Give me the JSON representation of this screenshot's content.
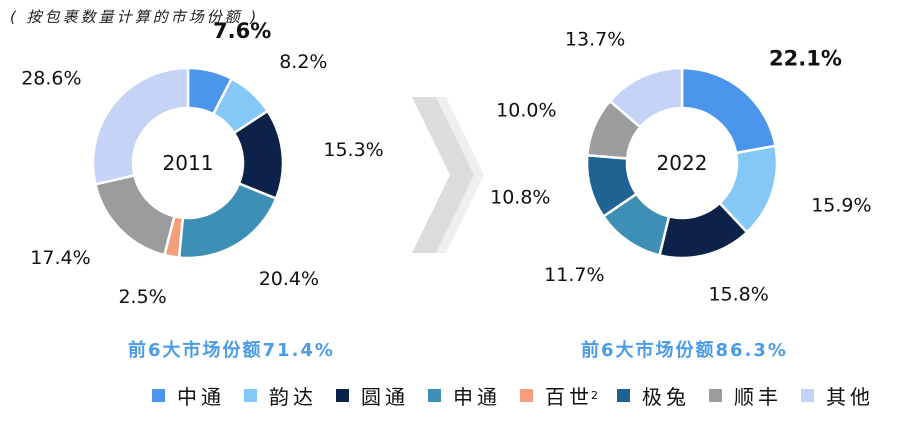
{
  "subtitle": "( 按包裹数量计算的市场份额 )",
  "colors": {
    "zto": "#4c95ec",
    "yunda": "#84c8f8",
    "yto": "#0d2248",
    "sto": "#3e8fb5",
    "best": "#f59e7e",
    "jitu": "#1e6391",
    "sf": "#9b9c9e",
    "other": "#c5d4f6"
  },
  "legend": [
    {
      "key": "zto",
      "label": "中通",
      "color": "#4c95ec"
    },
    {
      "key": "yunda",
      "label": "韵达",
      "color": "#84c8f8"
    },
    {
      "key": "yto",
      "label": "圆通",
      "color": "#0d2248"
    },
    {
      "key": "sto",
      "label": "申通",
      "color": "#3e8fb5"
    },
    {
      "key": "best",
      "label": "百世",
      "sup": "2",
      "color": "#f59e7e"
    },
    {
      "key": "jitu",
      "label": "极兔",
      "color": "#1e6391"
    },
    {
      "key": "sf",
      "label": "顺丰",
      "color": "#9b9c9e"
    },
    {
      "key": "other",
      "label": "其他",
      "color": "#c5d4f6"
    }
  ],
  "chart_data": [
    {
      "type": "pie",
      "center_label": "2011",
      "summary": "前6大市场份额71.4%",
      "slices": [
        {
          "key": "zto",
          "value": 7.6,
          "label": "7.6%",
          "bold": true
        },
        {
          "key": "yunda",
          "value": 8.2,
          "label": "8.2%"
        },
        {
          "key": "yto",
          "value": 15.3,
          "label": "15.3%"
        },
        {
          "key": "sto",
          "value": 20.4,
          "label": "20.4%"
        },
        {
          "key": "best",
          "value": 2.5,
          "label": "2.5%"
        },
        {
          "key": "sf",
          "value": 17.4,
          "label": "17.4%"
        },
        {
          "key": "other",
          "value": 28.6,
          "label": "28.6%"
        }
      ]
    },
    {
      "type": "pie",
      "center_label": "2022",
      "summary": "前6大市场份额86.3%",
      "slices": [
        {
          "key": "zto",
          "value": 22.1,
          "label": "22.1%",
          "bold": true
        },
        {
          "key": "yunda",
          "value": 15.9,
          "label": "15.9%"
        },
        {
          "key": "yto",
          "value": 15.8,
          "label": "15.8%"
        },
        {
          "key": "sto",
          "value": 11.7,
          "label": "11.7%"
        },
        {
          "key": "jitu",
          "value": 10.8,
          "label": "10.8%"
        },
        {
          "key": "sf",
          "value": 10.0,
          "label": "10.0%"
        },
        {
          "key": "other",
          "value": 13.7,
          "label": "13.7%"
        }
      ]
    }
  ]
}
